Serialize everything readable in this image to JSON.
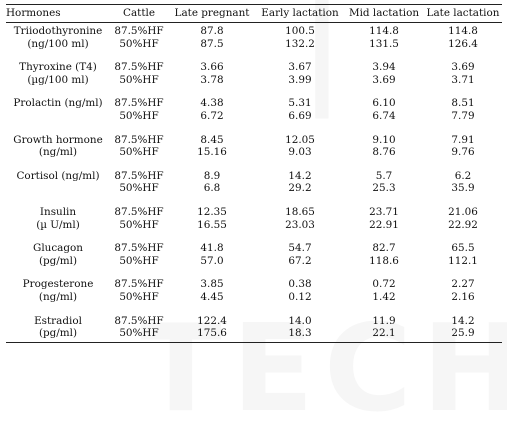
{
  "table": {
    "headers": [
      "Hormones",
      "Cattle",
      "Late pregnant",
      "Early lactation",
      "Mid lactation",
      "Late lactation"
    ],
    "groups": [
      {
        "hormone": [
          "Triiodothyronine",
          "(ng/100 ml)"
        ],
        "rows": [
          {
            "cattle": "87.5%HF",
            "values": [
              "87.8",
              "100.5",
              "114.8",
              "114.8"
            ]
          },
          {
            "cattle": "50%HF",
            "values": [
              "87.5",
              "132.2",
              "131.5",
              "126.4"
            ]
          }
        ]
      },
      {
        "hormone": [
          "Thyroxine (T4)",
          "(µg/100 ml)"
        ],
        "rows": [
          {
            "cattle": "87.5%HF",
            "values": [
              "3.66",
              "3.67",
              "3.94",
              "3.69"
            ]
          },
          {
            "cattle": "50%HF",
            "values": [
              "3.78",
              "3.99",
              "3.69",
              "3.71"
            ]
          }
        ]
      },
      {
        "hormone": [
          "Prolactin (ng/ml)",
          ""
        ],
        "rows": [
          {
            "cattle": "87.5%HF",
            "values": [
              "4.38",
              "5.31",
              "6.10",
              "8.51"
            ]
          },
          {
            "cattle": "50%HF",
            "values": [
              "6.72",
              "6.69",
              "6.74",
              "7.79"
            ]
          }
        ]
      },
      {
        "hormone": [
          "Growth hormone",
          "(ng/ml)"
        ],
        "rows": [
          {
            "cattle": "87.5%HF",
            "values": [
              "8.45",
              "12.05",
              "9.10",
              "7.91"
            ]
          },
          {
            "cattle": "50%HF",
            "values": [
              "15.16",
              "9.03",
              "8.76",
              "9.76"
            ]
          }
        ]
      },
      {
        "hormone": [
          "Cortisol (ng/ml)",
          ""
        ],
        "rows": [
          {
            "cattle": "87.5%HF",
            "values": [
              "8.9",
              "14.2",
              "5.7",
              "6.2"
            ]
          },
          {
            "cattle": "50%HF",
            "values": [
              "6.8",
              "29.2",
              "25.3",
              "35.9"
            ]
          }
        ]
      },
      {
        "hormone": [
          "Insulin",
          "(µ U/ml)"
        ],
        "rows": [
          {
            "cattle": "87.5%HF",
            "values": [
              "12.35",
              "18.65",
              "23.71",
              "21.06"
            ]
          },
          {
            "cattle": "50%HF",
            "values": [
              "16.55",
              "23.03",
              "22.91",
              "22.92"
            ]
          }
        ]
      },
      {
        "hormone": [
          "Glucagon",
          "(pg/ml)"
        ],
        "rows": [
          {
            "cattle": "87.5%HF",
            "values": [
              "41.8",
              "54.7",
              "82.7",
              "65.5"
            ]
          },
          {
            "cattle": "50%HF",
            "values": [
              "57.0",
              "67.2",
              "118.6",
              "112.1"
            ]
          }
        ]
      },
      {
        "hormone": [
          "Progesterone",
          "(ng/ml)"
        ],
        "rows": [
          {
            "cattle": "87.5%HF",
            "values": [
              "3.85",
              "0.38",
              "0.72",
              "2.27"
            ]
          },
          {
            "cattle": "50%HF",
            "values": [
              "4.45",
              "0.12",
              "1.42",
              "2.16"
            ]
          }
        ]
      },
      {
        "hormone": [
          "Estradiol",
          "(pg/ml)"
        ],
        "rows": [
          {
            "cattle": "87.5%HF",
            "values": [
              "122.4",
              "14.0",
              "11.9",
              "14.2"
            ]
          },
          {
            "cattle": "50%HF",
            "values": [
              "175.6",
              "18.3",
              "22.1",
              "25.9"
            ]
          }
        ]
      }
    ]
  }
}
